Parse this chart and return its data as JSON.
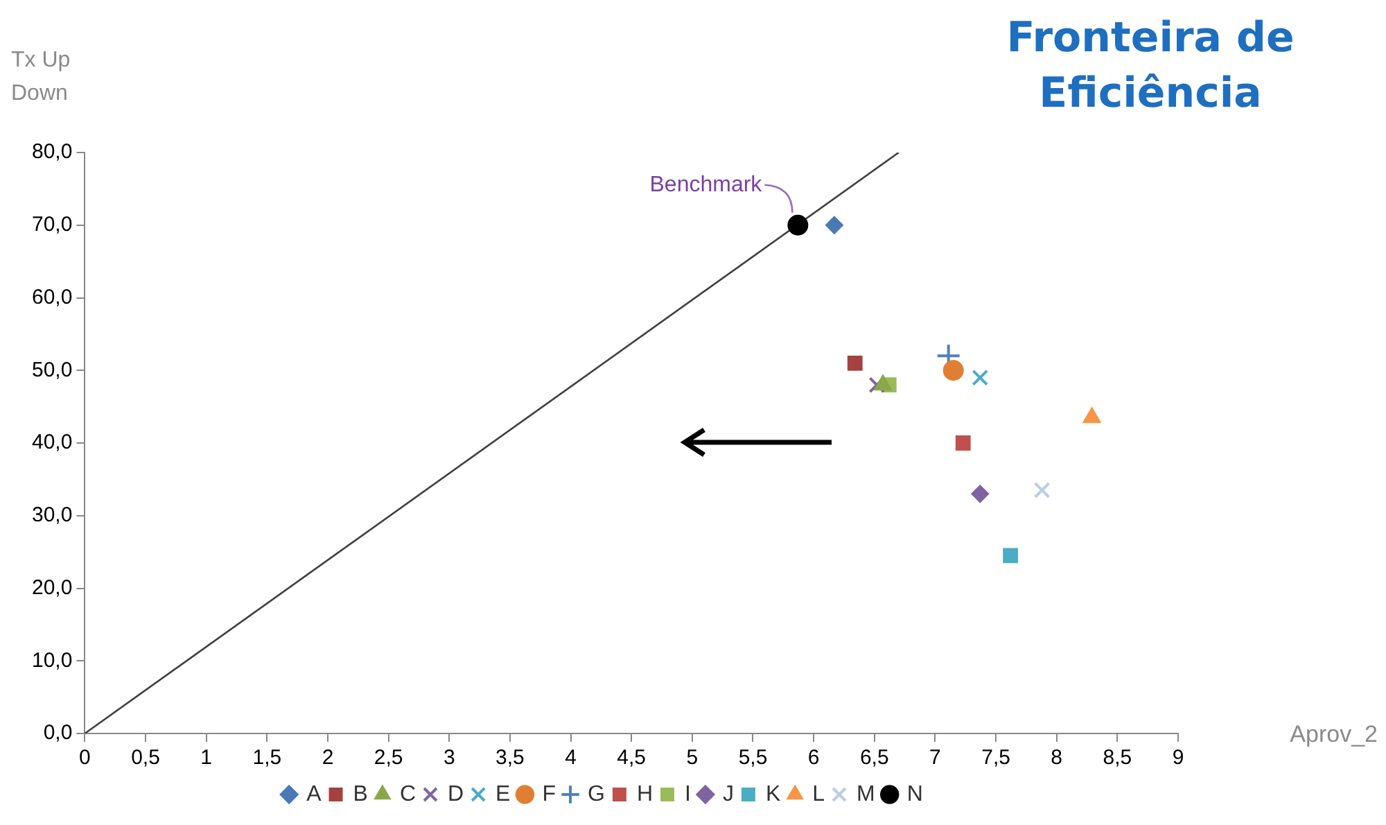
{
  "chart_data": {
    "type": "scatter",
    "title": "Fronteira de Eficiência",
    "xlabel": "Aprov_2",
    "ylabel": "Tx Up Down",
    "xlim": [
      0,
      9
    ],
    "xticks": [
      0,
      {
        "value": 0.5,
        "label": "0,5"
      },
      1,
      {
        "value": 1.5,
        "label": "1,5"
      },
      2,
      {
        "value": 2.5,
        "label": "2,5"
      },
      3,
      {
        "value": 3.5,
        "label": "3,5"
      },
      4,
      {
        "value": 4.5,
        "label": "4,5"
      },
      5,
      {
        "value": 5.5,
        "label": "5,5"
      },
      6,
      {
        "value": 6.5,
        "label": "6,5"
      },
      7,
      {
        "value": 7.5,
        "label": "7,5"
      },
      8,
      {
        "value": 8.5,
        "label": "8,5"
      },
      9
    ],
    "ylim": [
      0,
      80
    ],
    "yticks": [
      {
        "value": 0,
        "label": "0,0"
      },
      {
        "value": 10,
        "label": "10,0"
      },
      {
        "value": 20,
        "label": "20,0"
      },
      {
        "value": 30,
        "label": "30,0"
      },
      {
        "value": 40,
        "label": "40,0"
      },
      {
        "value": 50,
        "label": "50,0"
      },
      {
        "value": 60,
        "label": "60,0"
      },
      {
        "value": 70,
        "label": "70,0"
      },
      {
        "value": 80,
        "label": "80,0"
      }
    ],
    "grid": false,
    "legend": "bottom",
    "annotations": [
      {
        "text": "Benchmark",
        "x": 5.87,
        "y": 70
      }
    ],
    "series": [
      {
        "name": "A",
        "color": "#4a7ab5",
        "marker": "diamond",
        "x": [
          6.17
        ],
        "values": [
          70
        ]
      },
      {
        "name": "B",
        "color": "#a5413f",
        "marker": "square",
        "x": [
          6.34
        ],
        "values": [
          51
        ]
      },
      {
        "name": "C",
        "color": "#8aa84a",
        "marker": "triangle",
        "x": [
          6.57
        ],
        "values": [
          48
        ]
      },
      {
        "name": "D",
        "color": "#8064a2",
        "marker": "cross",
        "x": [
          6.52
        ],
        "values": [
          48
        ]
      },
      {
        "name": "E",
        "color": "#4bacc6",
        "marker": "cross",
        "x": [
          7.37
        ],
        "values": [
          49
        ]
      },
      {
        "name": "F",
        "color": "#e07f34",
        "marker": "circle",
        "x": [
          7.15
        ],
        "values": [
          50
        ]
      },
      {
        "name": "G",
        "color": "#4f81bd",
        "marker": "plus",
        "x": [
          7.11
        ],
        "values": [
          52
        ]
      },
      {
        "name": "H",
        "color": "#c0504d",
        "marker": "square",
        "x": [
          7.23
        ],
        "values": [
          40
        ]
      },
      {
        "name": "I",
        "color": "#9bbb59",
        "marker": "square",
        "x": [
          6.62
        ],
        "values": [
          48
        ]
      },
      {
        "name": "J",
        "color": "#8064a2",
        "marker": "diamond",
        "x": [
          7.37
        ],
        "values": [
          33
        ]
      },
      {
        "name": "K",
        "color": "#4bacc6",
        "marker": "square",
        "x": [
          7.62
        ],
        "values": [
          24.5
        ]
      },
      {
        "name": "L",
        "color": "#f79646",
        "marker": "triangle",
        "x": [
          8.29
        ],
        "values": [
          43.5
        ]
      },
      {
        "name": "M",
        "color": "#b9cde5",
        "marker": "cross",
        "x": [
          7.88
        ],
        "values": [
          33.5
        ]
      },
      {
        "name": "N",
        "color": "#000000",
        "marker": "circle",
        "x": [
          5.87
        ],
        "values": [
          70
        ]
      },
      {
        "type": "line",
        "color": "#404040",
        "marker": "none",
        "x": [
          0,
          6.7
        ],
        "values": [
          0,
          80
        ]
      }
    ]
  }
}
